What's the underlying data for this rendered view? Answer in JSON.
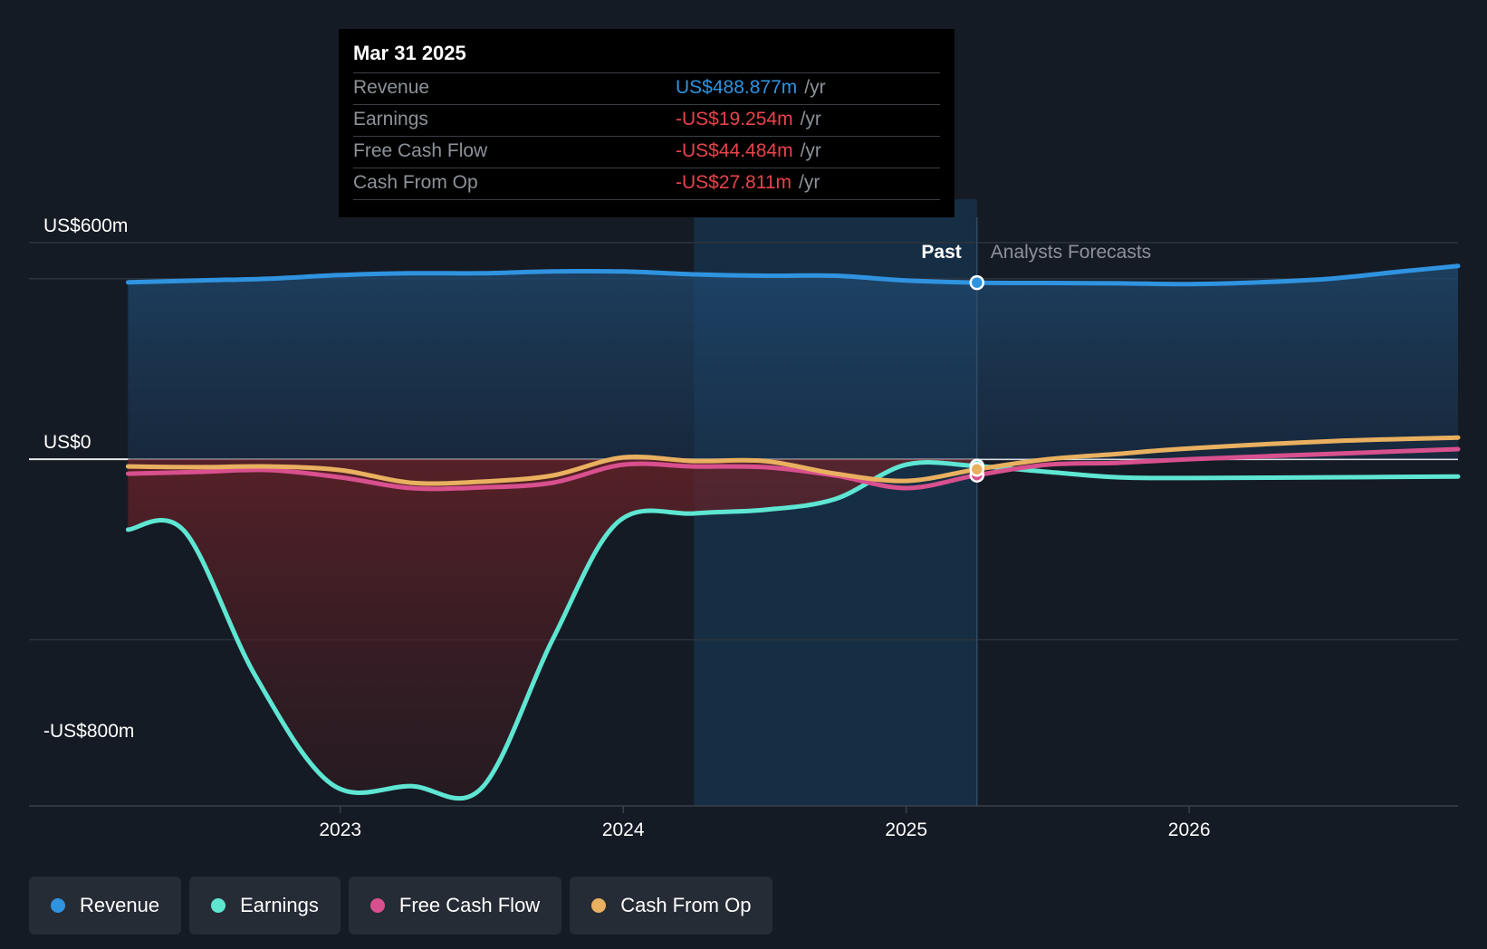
{
  "tooltip": {
    "date": "Mar 31 2025",
    "rows": [
      {
        "label": "Revenue",
        "value": "US$488.877m",
        "unit": "/yr",
        "color": "#2f93e0"
      },
      {
        "label": "Earnings",
        "value": "-US$19.254m",
        "unit": "/yr",
        "color": "#e8434b"
      },
      {
        "label": "Free Cash Flow",
        "value": "-US$44.484m",
        "unit": "/yr",
        "color": "#e8434b"
      },
      {
        "label": "Cash From Op",
        "value": "-US$27.811m",
        "unit": "/yr",
        "color": "#e8434b"
      }
    ]
  },
  "past_label": "Past",
  "forecast_label": "Analysts Forecasts",
  "legend": [
    {
      "label": "Revenue",
      "color": "#2f93e0"
    },
    {
      "label": "Earnings",
      "color": "#5ee6d3"
    },
    {
      "label": "Free Cash Flow",
      "color": "#d8508e"
    },
    {
      "label": "Cash From Op",
      "color": "#e9b060"
    }
  ],
  "chart_data": {
    "type": "line",
    "y_tick_labels": [
      {
        "value": 600,
        "label": "US$600m"
      },
      {
        "value": 0,
        "label": "US$0"
      },
      {
        "value": -800,
        "label": "-US$800m"
      }
    ],
    "x_ticks": [
      {
        "value": 2023,
        "label": "2023"
      },
      {
        "value": 2024,
        "label": "2024"
      },
      {
        "value": 2025,
        "label": "2025"
      },
      {
        "value": 2026,
        "label": "2026"
      }
    ],
    "ylim": [
      -960,
      720
    ],
    "xlim": [
      2021.9,
      2026.95
    ],
    "grid": true,
    "past_forecast_divider": 2025.25,
    "highlight_start": 2024.25,
    "tooltip_x": 2025.25,
    "series": [
      {
        "name": "Revenue",
        "color": "#2f93e0",
        "points": [
          [
            2022.25,
            490
          ],
          [
            2022.5,
            495
          ],
          [
            2022.75,
            500
          ],
          [
            2023,
            510
          ],
          [
            2023.25,
            515
          ],
          [
            2023.5,
            515
          ],
          [
            2023.75,
            520
          ],
          [
            2024,
            520
          ],
          [
            2024.25,
            512
          ],
          [
            2024.5,
            508
          ],
          [
            2024.75,
            508
          ],
          [
            2025,
            495
          ],
          [
            2025.25,
            489
          ],
          [
            2025.5,
            488
          ],
          [
            2025.75,
            487
          ],
          [
            2026,
            485
          ],
          [
            2026.25,
            490
          ],
          [
            2026.5,
            500
          ],
          [
            2026.75,
            520
          ],
          [
            2026.95,
            535
          ]
        ]
      },
      {
        "name": "Earnings",
        "color": "#5ee6d3",
        "points": [
          [
            2022.25,
            -195
          ],
          [
            2022.45,
            -200
          ],
          [
            2022.7,
            -600
          ],
          [
            2022.97,
            -900
          ],
          [
            2023.25,
            -905
          ],
          [
            2023.5,
            -910
          ],
          [
            2023.75,
            -500
          ],
          [
            2023.98,
            -175
          ],
          [
            2024.25,
            -150
          ],
          [
            2024.5,
            -140
          ],
          [
            2024.75,
            -110
          ],
          [
            2025,
            -15
          ],
          [
            2025.25,
            -19
          ],
          [
            2025.5,
            -35
          ],
          [
            2025.75,
            -50
          ],
          [
            2026,
            -52
          ],
          [
            2026.5,
            -50
          ],
          [
            2026.95,
            -48
          ]
        ]
      },
      {
        "name": "Free Cash Flow",
        "color": "#d8508e",
        "points": [
          [
            2022.25,
            -40
          ],
          [
            2022.5,
            -35
          ],
          [
            2022.75,
            -30
          ],
          [
            2023,
            -50
          ],
          [
            2023.25,
            -80
          ],
          [
            2023.5,
            -78
          ],
          [
            2023.75,
            -65
          ],
          [
            2024,
            -15
          ],
          [
            2024.25,
            -20
          ],
          [
            2024.5,
            -22
          ],
          [
            2024.75,
            -45
          ],
          [
            2025,
            -80
          ],
          [
            2025.25,
            -44
          ],
          [
            2025.5,
            -15
          ],
          [
            2025.75,
            -10
          ],
          [
            2026,
            0
          ],
          [
            2026.5,
            15
          ],
          [
            2026.95,
            28
          ]
        ]
      },
      {
        "name": "Cash From Op",
        "color": "#e9b060",
        "points": [
          [
            2022.25,
            -20
          ],
          [
            2022.5,
            -22
          ],
          [
            2022.75,
            -20
          ],
          [
            2023,
            -30
          ],
          [
            2023.25,
            -65
          ],
          [
            2023.5,
            -62
          ],
          [
            2023.75,
            -45
          ],
          [
            2024,
            5
          ],
          [
            2024.25,
            -5
          ],
          [
            2024.5,
            -5
          ],
          [
            2024.75,
            -40
          ],
          [
            2025,
            -60
          ],
          [
            2025.25,
            -28
          ],
          [
            2025.5,
            0
          ],
          [
            2025.75,
            15
          ],
          [
            2026,
            30
          ],
          [
            2026.5,
            50
          ],
          [
            2026.95,
            60
          ]
        ]
      }
    ]
  }
}
